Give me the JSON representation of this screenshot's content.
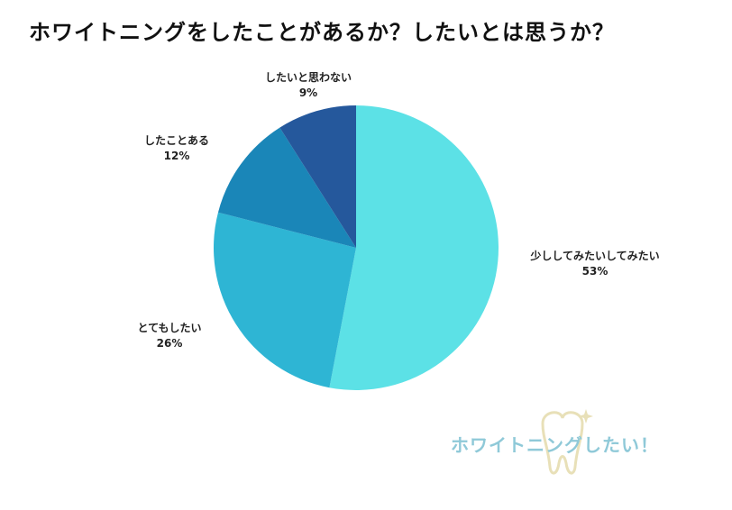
{
  "chart_data": {
    "type": "pie",
    "title": "ホワイトニングをしたことがあるか？したいとは思うか？",
    "slices": [
      {
        "label": "少ししてみたいしてみたい",
        "value": 53,
        "display": "53%",
        "color": "#5ce1e6"
      },
      {
        "label": "とてもしたい",
        "value": 26,
        "display": "26%",
        "color": "#2eb5d4"
      },
      {
        "label": "したことある",
        "value": 12,
        "display": "12%",
        "color": "#1a86b8"
      },
      {
        "label": "したいと思わない",
        "value": 9,
        "display": "9%",
        "color": "#25589c"
      }
    ]
  },
  "logo": {
    "text": "ホワイトニングしたい！",
    "icon": "tooth-icon",
    "color": "#8fc9d8"
  }
}
